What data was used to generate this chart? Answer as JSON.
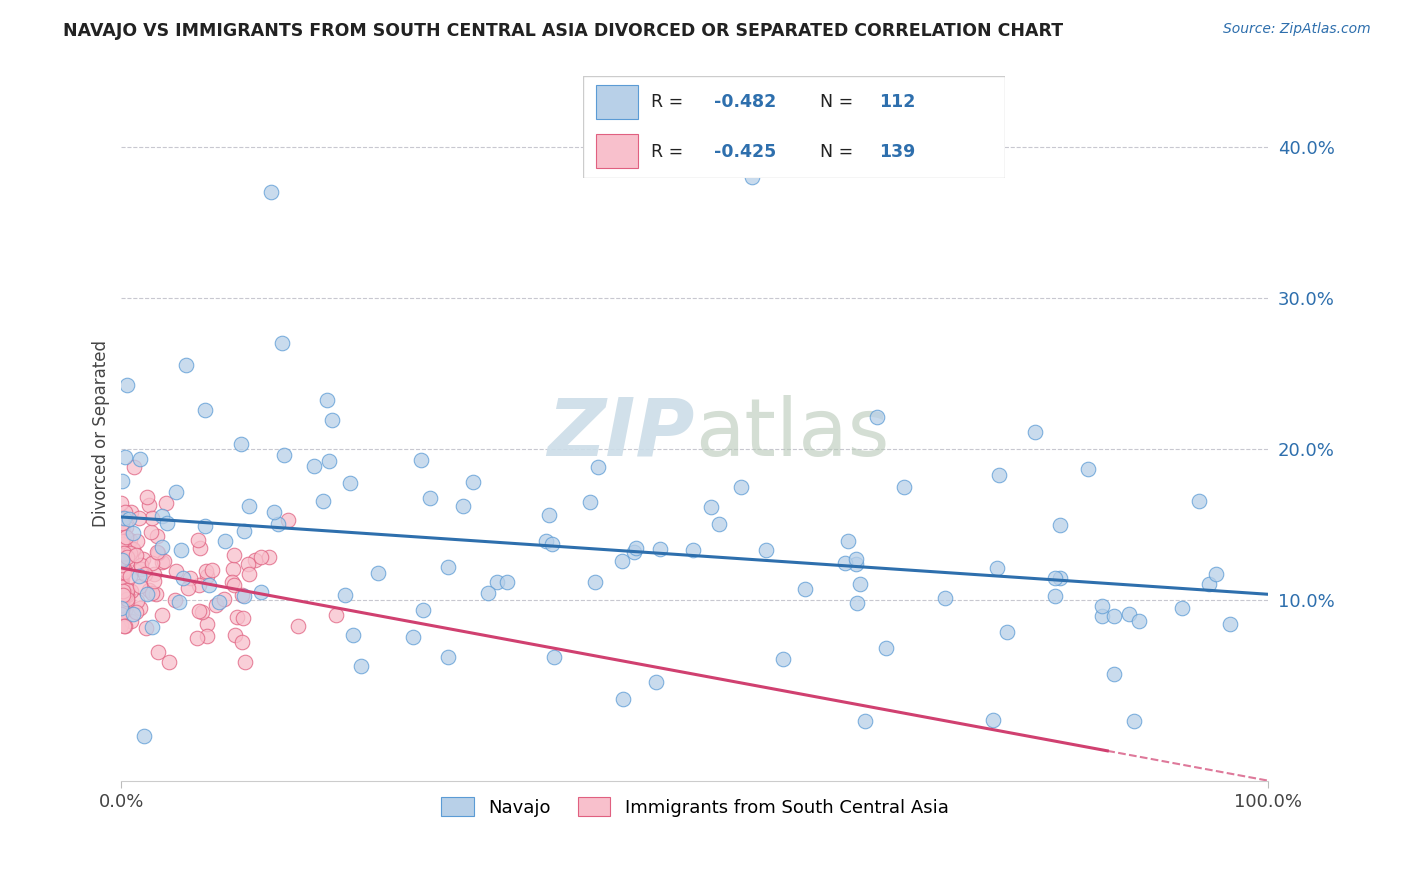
{
  "title": "NAVAJO VS IMMIGRANTS FROM SOUTH CENTRAL ASIA DIVORCED OR SEPARATED CORRELATION CHART",
  "source": "Source: ZipAtlas.com",
  "ylabel": "Divorced or Separated",
  "legend_labels": [
    "Navajo",
    "Immigrants from South Central Asia"
  ],
  "r_navajo": -0.482,
  "n_navajo": 112,
  "r_immigrants": -0.425,
  "n_immigrants": 139,
  "navajo_color": "#b8d0e8",
  "navajo_edge_color": "#5b9bd5",
  "navajo_line_color": "#2e6fad",
  "immigrants_color": "#f8c0cc",
  "immigrants_edge_color": "#e06080",
  "immigrants_line_color": "#d04070",
  "background_color": "#ffffff",
  "grid_color": "#c8c8d0",
  "watermark_color": "#ccdde8",
  "xlim": [
    0,
    1.0
  ],
  "ylim": [
    -0.02,
    0.44
  ],
  "yticks": [
    0.1,
    0.2,
    0.3,
    0.4
  ],
  "xtick_positions": [
    0.0,
    1.0
  ],
  "xtick_labels": [
    "0.0%",
    "100.0%"
  ],
  "nav_line_x0": 0.0,
  "nav_line_y0": 0.172,
  "nav_line_x1": 1.0,
  "nav_line_y1": 0.088,
  "imm_line_x0": 0.0,
  "imm_line_y0": 0.124,
  "imm_line_x1": 1.0,
  "imm_line_y1": -0.028
}
